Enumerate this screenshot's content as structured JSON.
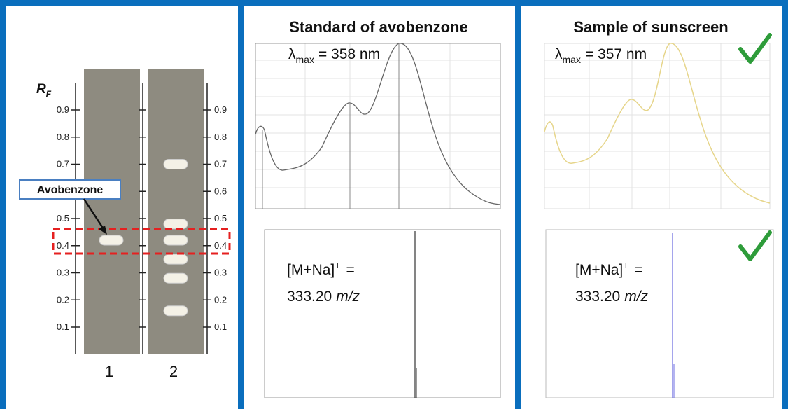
{
  "tlc": {
    "axis_label": "R",
    "axis_subscript": "F",
    "ticks": [
      0.1,
      0.2,
      0.3,
      0.4,
      0.5,
      0.6,
      0.7,
      0.8,
      0.9
    ],
    "annotation": "Avobenzone",
    "lanes": [
      {
        "label": "1",
        "spots": [
          0.42
        ]
      },
      {
        "label": "2",
        "spots": [
          0.7,
          0.48,
          0.42,
          0.35,
          0.28,
          0.16
        ]
      }
    ]
  },
  "standard": {
    "title": "Standard of avobenzone",
    "uv": {
      "symbol": "λ",
      "subscript": "max",
      "text": "= 358 nm"
    },
    "ms": {
      "ion": "[M+Na]",
      "charge": "+",
      "equals": "=",
      "value": "333.20",
      "unit": "m/z"
    }
  },
  "sample": {
    "title": "Sample of sunscreen",
    "uv": {
      "symbol": "λ",
      "subscript": "max",
      "text": "= 357 nm"
    },
    "ms": {
      "ion": "[M+Na]",
      "charge": "+",
      "equals": "=",
      "value": "333.20",
      "unit": "m/z"
    }
  }
}
